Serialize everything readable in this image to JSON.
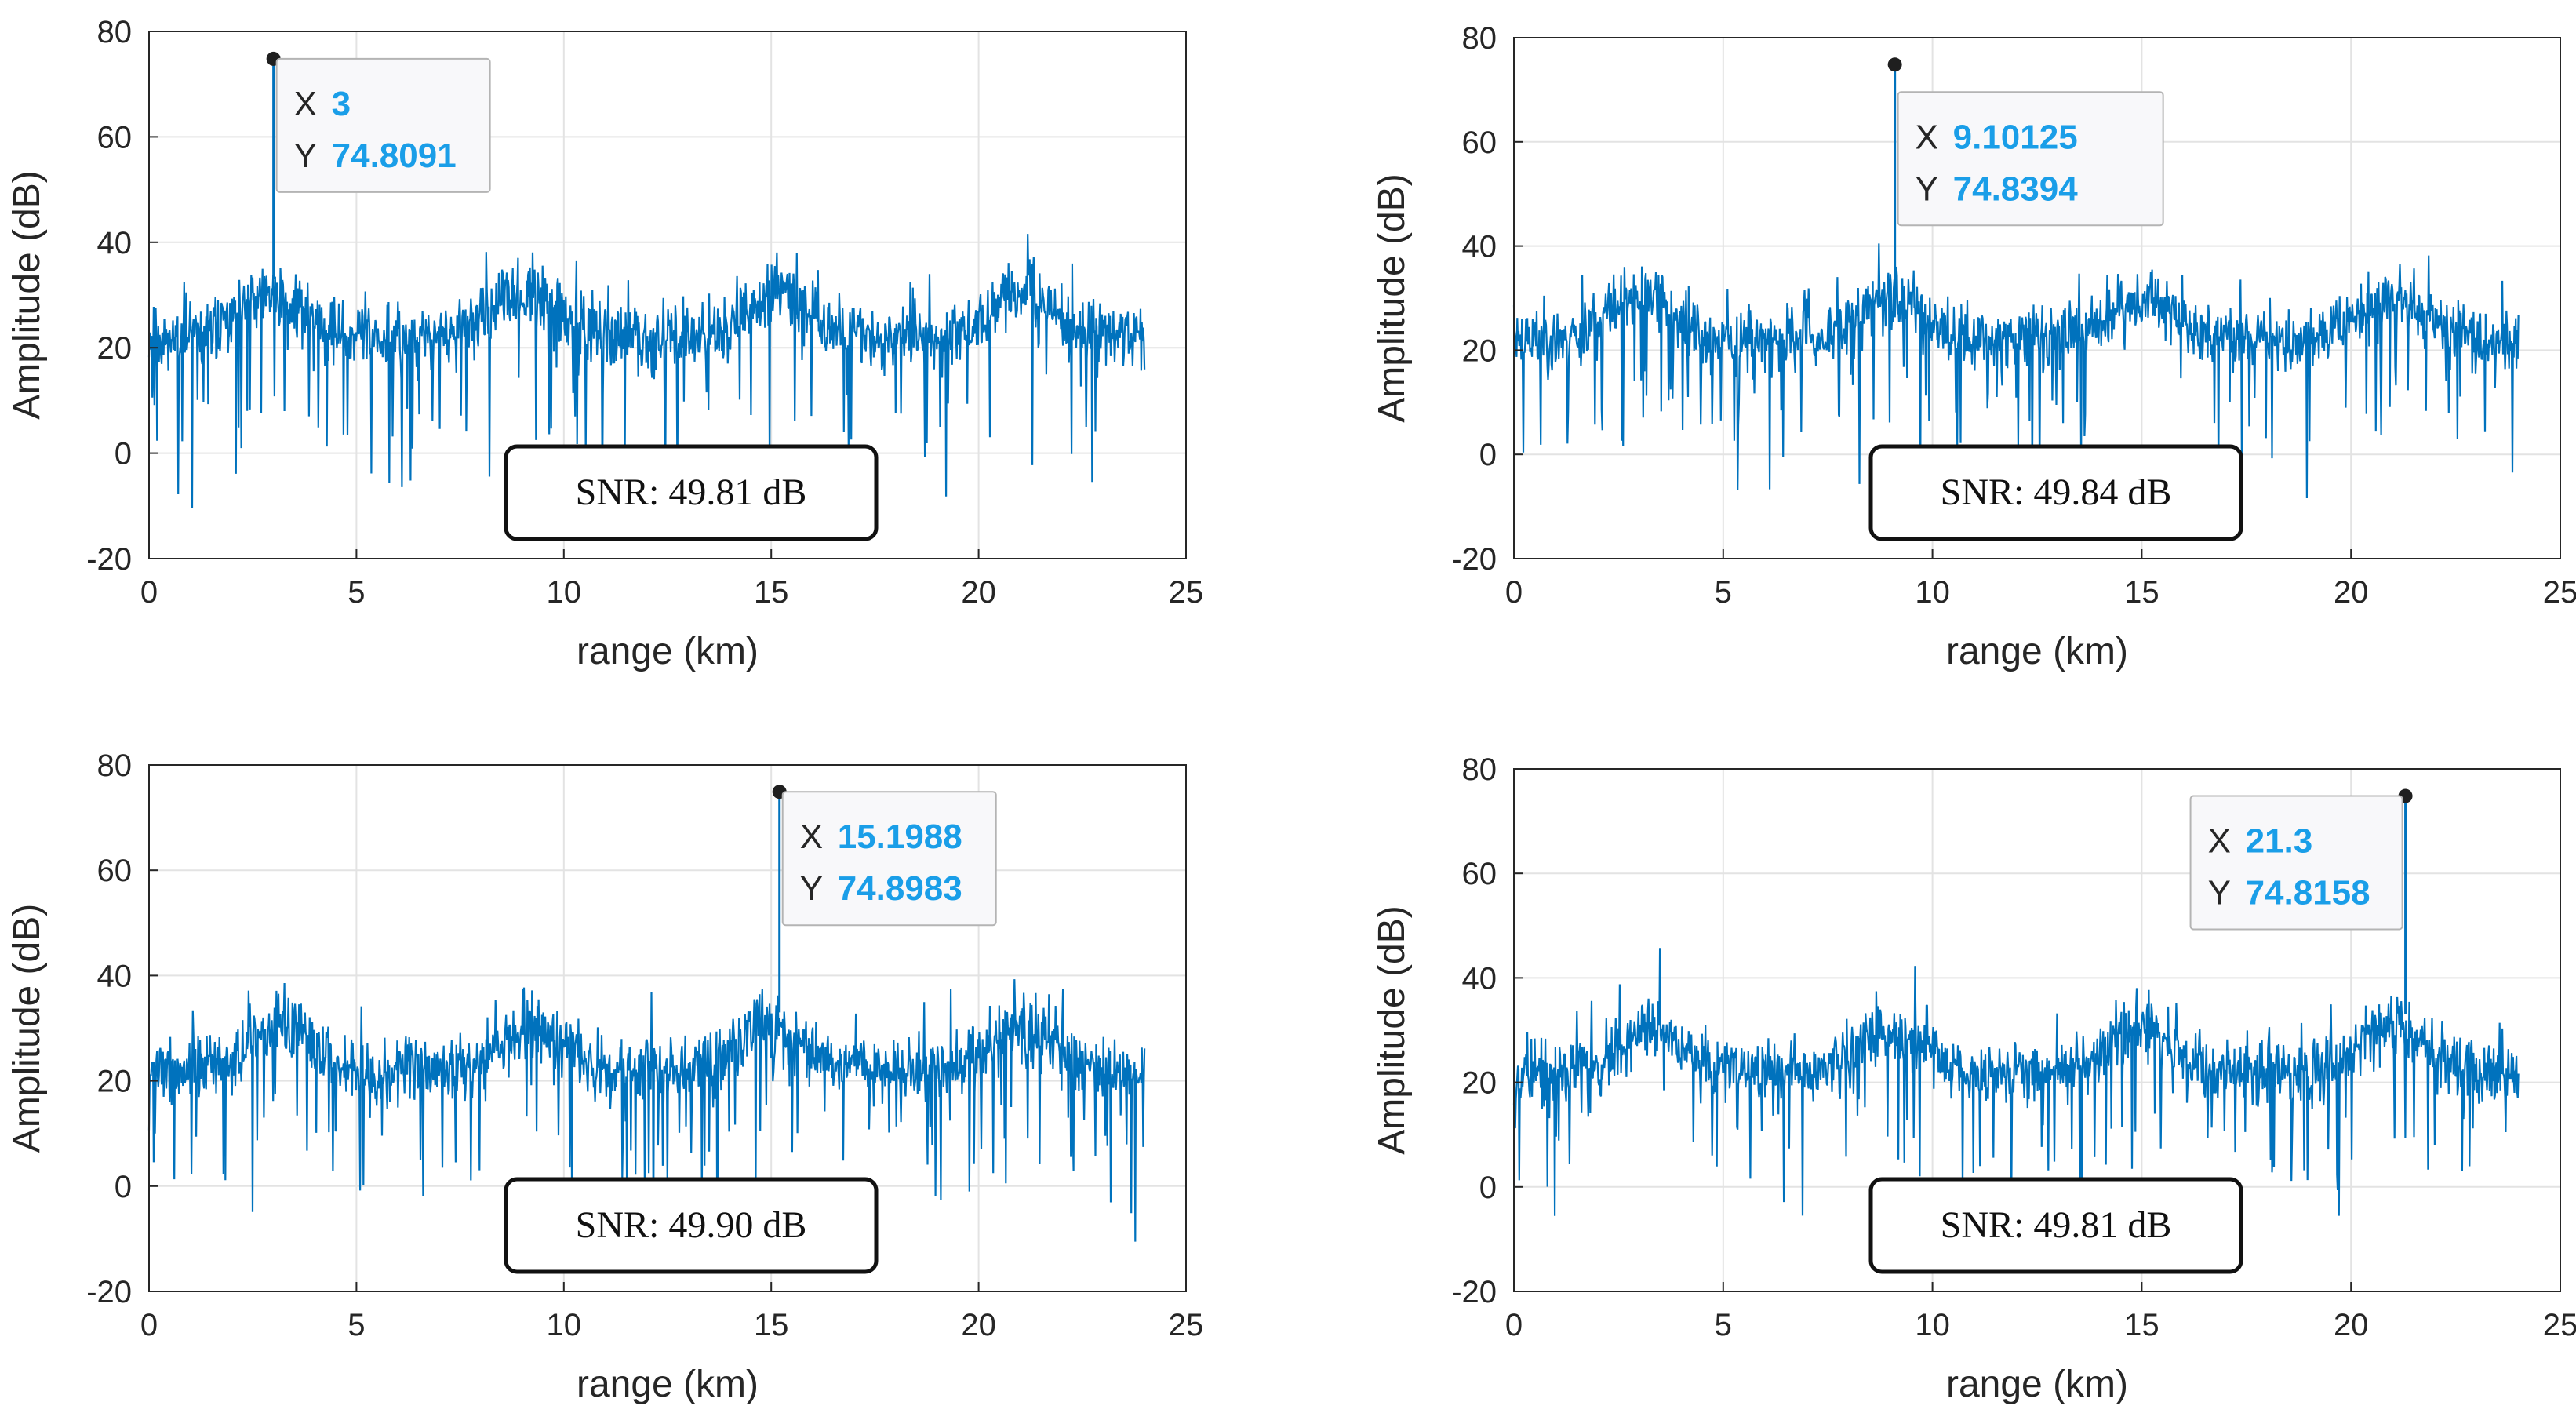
{
  "colors": {
    "signal": "#0072bd",
    "grid": "#e3e3e3",
    "axes_box": "#262626",
    "datatip_value": "#1a9ee8",
    "marker": "#1f1f1f"
  },
  "chart_data": [
    {
      "type": "line",
      "panel": "top-left",
      "xlabel": "range (km)",
      "ylabel": "Amplitude (dB)",
      "xlim": [
        0,
        25
      ],
      "ylim": [
        -20,
        80
      ],
      "xticks": [
        0,
        5,
        10,
        15,
        20,
        25
      ],
      "yticks": [
        -20,
        0,
        20,
        40,
        60,
        80
      ],
      "grid": true,
      "signal": {
        "x_range": [
          0,
          24
        ],
        "baseline_db": 25,
        "hump_centers_km": [
          3,
          9,
          15.2,
          21
        ],
        "hump_height_db": 8,
        "peak": {
          "x": 3,
          "y": 74.8091
        },
        "seed": 11
      },
      "datatip": {
        "x_label": "X",
        "x_value": "3",
        "y_label": "Y",
        "y_value": "74.8091"
      },
      "annotation": "SNR: 49.81 dB"
    },
    {
      "type": "line",
      "panel": "top-right",
      "xlabel": "range (km)",
      "ylabel": "Amplitude (dB)",
      "xlim": [
        0,
        25
      ],
      "ylim": [
        -20,
        80
      ],
      "xticks": [
        0,
        5,
        10,
        15,
        20,
        25
      ],
      "yticks": [
        -20,
        0,
        20,
        40,
        60,
        80
      ],
      "grid": true,
      "signal": {
        "x_range": [
          0,
          24
        ],
        "baseline_db": 25,
        "hump_centers_km": [
          3,
          9,
          15,
          21
        ],
        "hump_height_db": 8,
        "peak": {
          "x": 9.10125,
          "y": 74.8394
        },
        "seed": 23
      },
      "datatip": {
        "x_label": "X",
        "x_value": "9.10125",
        "y_label": "Y",
        "y_value": "74.8394"
      },
      "annotation": "SNR: 49.84 dB"
    },
    {
      "type": "line",
      "panel": "bottom-left",
      "xlabel": "range (km)",
      "ylabel": "Amplitude (dB)",
      "xlim": [
        0,
        25
      ],
      "ylim": [
        -20,
        80
      ],
      "xticks": [
        0,
        5,
        10,
        15,
        20,
        25
      ],
      "yticks": [
        -20,
        0,
        20,
        40,
        60,
        80
      ],
      "grid": true,
      "signal": {
        "x_range": [
          0,
          24
        ],
        "baseline_db": 25,
        "hump_centers_km": [
          3.2,
          9.2,
          15,
          21
        ],
        "hump_height_db": 8,
        "peak": {
          "x": 15.1988,
          "y": 74.8983
        },
        "seed": 37
      },
      "datatip": {
        "x_label": "X",
        "x_value": "15.1988",
        "y_label": "Y",
        "y_value": "74.8983"
      },
      "annotation": "SNR: 49.90 dB"
    },
    {
      "type": "line",
      "panel": "bottom-right",
      "xlabel": "range (km)",
      "ylabel": "Amplitude (dB)",
      "xlim": [
        0,
        25
      ],
      "ylim": [
        -20,
        80
      ],
      "xticks": [
        0,
        5,
        10,
        15,
        20,
        25
      ],
      "yticks": [
        -20,
        0,
        20,
        40,
        60,
        80
      ],
      "grid": true,
      "signal": {
        "x_range": [
          0,
          24
        ],
        "baseline_db": 25,
        "hump_centers_km": [
          3.3,
          9,
          15,
          21
        ],
        "hump_height_db": 8,
        "peak": {
          "x": 21.3,
          "y": 74.8158
        },
        "seed": 53
      },
      "datatip": {
        "x_label": "X",
        "x_value": "21.3",
        "y_label": "Y",
        "y_value": "74.8158"
      },
      "annotation": "SNR: 49.81 dB"
    }
  ]
}
